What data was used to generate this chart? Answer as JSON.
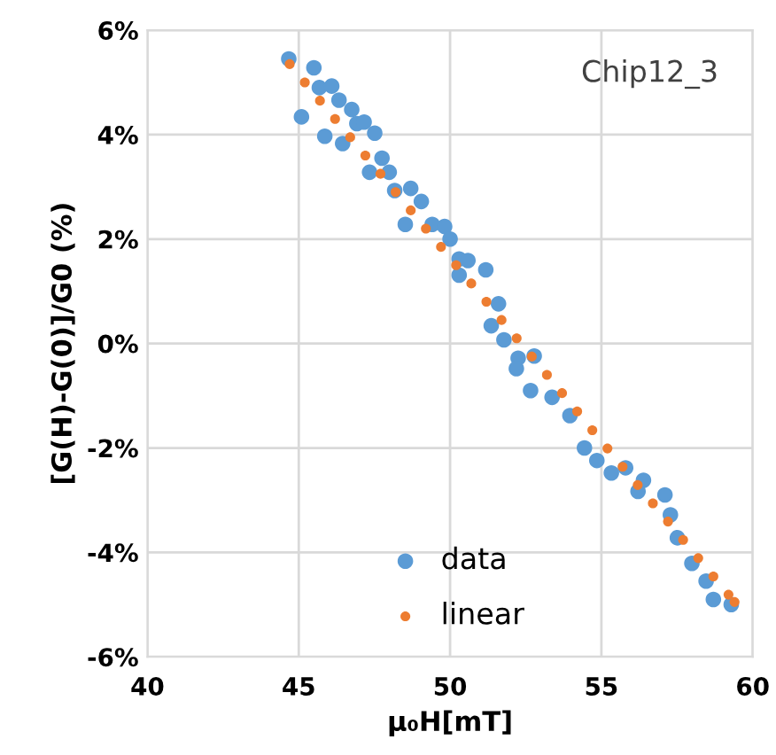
{
  "chart_data": {
    "type": "scatter",
    "title": "Chip12_3",
    "xlabel": "μ₀H[mT]",
    "ylabel": "[G(H)-G(0)]/G0 (%)",
    "xlim": [
      40,
      60
    ],
    "xticks": [
      40,
      45,
      50,
      55,
      60
    ],
    "ylim": [
      -6,
      6
    ],
    "yticks": [
      {
        "value": -6,
        "label": "-6%"
      },
      {
        "value": -4,
        "label": "-4%"
      },
      {
        "value": -2,
        "label": "-2%"
      },
      {
        "value": 0,
        "label": "0%"
      },
      {
        "value": 2,
        "label": "2%"
      },
      {
        "value": 4,
        "label": "4%"
      },
      {
        "value": 6,
        "label": "6%"
      }
    ],
    "grid": true,
    "legend": "bottom",
    "marker": "circle",
    "series": [
      {
        "name": "data",
        "color": "#5b9bd5",
        "x": [
          44.67,
          45.5,
          45.09,
          45.68,
          46.09,
          46.33,
          46.75,
          45.86,
          46.45,
          46.92,
          47.16,
          47.51,
          47.75,
          47.99,
          47.34,
          48.17,
          48.7,
          49.05,
          48.52,
          49.41,
          49.82,
          50.0,
          50.3,
          50.59,
          51.18,
          50.3,
          51.6,
          51.36,
          51.78,
          52.78,
          52.25,
          52.19,
          52.66,
          53.37,
          53.96,
          54.44,
          54.85,
          55.33,
          55.8,
          56.39,
          56.21,
          57.1,
          57.28,
          57.51,
          57.99,
          58.46,
          58.7,
          59.29
        ],
        "values": [
          5.45,
          5.28,
          4.34,
          4.9,
          4.93,
          4.66,
          4.48,
          3.97,
          3.83,
          4.21,
          4.24,
          4.03,
          3.55,
          3.28,
          3.28,
          2.93,
          2.97,
          2.72,
          2.28,
          2.28,
          2.24,
          2.0,
          1.62,
          1.59,
          1.41,
          1.31,
          0.76,
          0.34,
          0.07,
          -0.24,
          -0.28,
          -0.48,
          -0.9,
          -1.03,
          -1.38,
          -2.0,
          -2.24,
          -2.48,
          -2.38,
          -2.62,
          -2.83,
          -2.9,
          -3.28,
          -3.72,
          -4.21,
          -4.55,
          -4.9,
          -5.0
        ]
      },
      {
        "name": "linear",
        "color": "#ed7d31",
        "x": [
          44.7,
          45.2,
          45.7,
          46.2,
          46.7,
          47.2,
          47.7,
          48.2,
          48.7,
          49.2,
          49.7,
          50.2,
          50.7,
          51.2,
          51.7,
          52.2,
          52.7,
          53.2,
          53.7,
          54.2,
          54.7,
          55.2,
          55.7,
          56.2,
          56.7,
          57.2,
          57.7,
          58.2,
          58.7,
          59.2,
          59.4
        ],
        "values": [
          5.35,
          5.0,
          4.65,
          4.3,
          3.95,
          3.6,
          3.25,
          2.9,
          2.55,
          2.2,
          1.85,
          1.5,
          1.15,
          0.8,
          0.45,
          0.1,
          -0.25,
          -0.6,
          -0.95,
          -1.3,
          -1.66,
          -2.01,
          -2.36,
          -2.71,
          -3.06,
          -3.41,
          -3.76,
          -4.11,
          -4.46,
          -4.81,
          -4.95
        ]
      }
    ]
  }
}
